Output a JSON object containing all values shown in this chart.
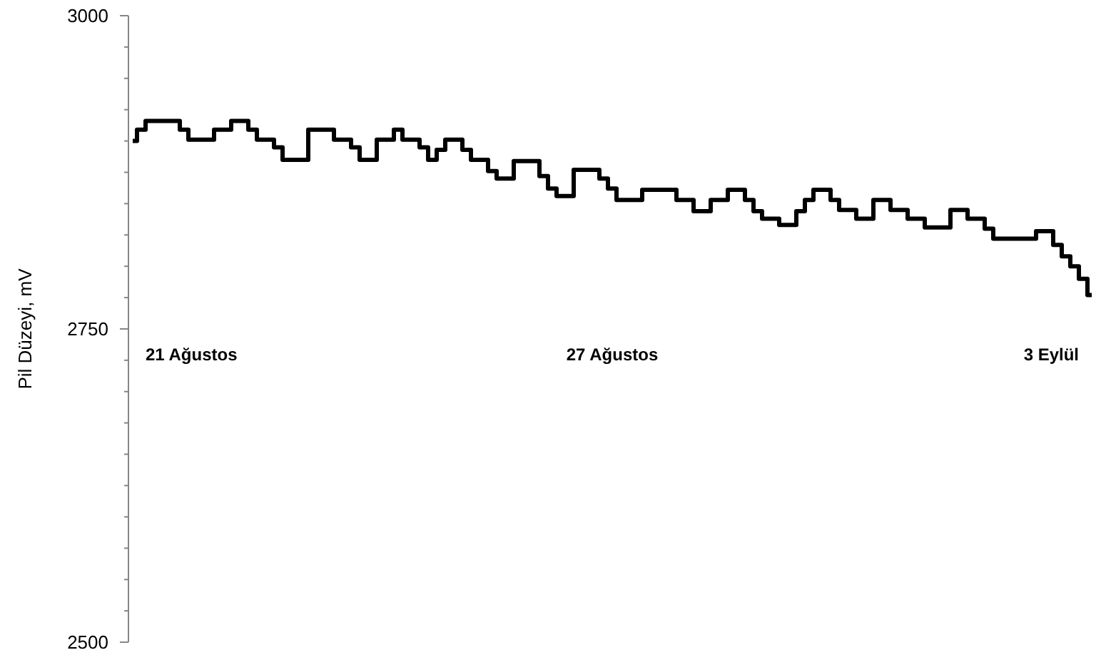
{
  "chart_data": {
    "type": "step",
    "ylabel": "Pil Düzeyi, mV",
    "ylim": [
      2500,
      3000
    ],
    "yticks": [
      2500,
      {
        "value": 2525,
        "label": null
      },
      {
        "value": 2550,
        "label": null
      },
      {
        "value": 2575,
        "label": null
      },
      {
        "value": 2600,
        "label": null
      },
      {
        "value": 2625,
        "label": null
      },
      {
        "value": 2650,
        "label": null
      },
      {
        "value": 2675,
        "label": null
      },
      {
        "value": 2700,
        "label": null
      },
      {
        "value": 2725,
        "label": null
      },
      2750,
      {
        "value": 2775,
        "label": null
      },
      {
        "value": 2800,
        "label": null
      },
      {
        "value": 2825,
        "label": null
      },
      {
        "value": 2850,
        "label": null
      },
      {
        "value": 2875,
        "label": null
      },
      {
        "value": 2900,
        "label": null
      },
      {
        "value": 2925,
        "label": null
      },
      {
        "value": 2950,
        "label": null
      },
      {
        "value": 2975,
        "label": null
      },
      3000
    ],
    "categories": [
      null,
      null,
      null,
      null,
      null,
      null,
      null,
      null,
      null,
      null,
      null,
      null,
      null,
      null,
      null,
      null,
      null,
      null,
      null,
      null,
      null,
      null,
      null,
      null,
      null,
      null,
      null,
      null,
      null,
      null,
      null,
      null,
      null,
      null,
      null,
      null,
      null,
      null,
      null,
      null,
      null,
      null,
      null,
      null,
      null,
      null,
      null,
      null,
      null,
      null,
      null,
      null,
      null,
      null,
      null,
      null,
      null,
      null,
      null,
      null,
      null,
      null,
      null,
      null,
      null,
      null,
      null,
      null,
      null,
      null,
      null,
      null,
      null,
      null,
      null,
      null,
      null,
      null,
      null,
      null,
      null,
      null,
      null,
      null,
      null,
      null,
      null,
      null,
      null,
      null,
      null,
      null,
      null,
      null,
      null,
      null,
      null,
      null,
      null,
      null,
      null,
      null,
      null,
      null,
      null,
      null,
      null,
      null,
      null,
      null,
      null,
      null,
      null
    ],
    "series": [
      {
        "color": "#000000",
        "values": [
          2900,
          2909,
          2916,
          2916,
          2916,
          2916,
          2909,
          2901,
          2901,
          2901,
          2909,
          2909,
          2916,
          2916,
          2909,
          2901,
          2901,
          2895,
          2885,
          2885,
          2885,
          2909,
          2909,
          2909,
          2901,
          2901,
          2895,
          2885,
          2885,
          2901,
          2901,
          2909,
          2901,
          2901,
          2895,
          2885,
          2893,
          2901,
          2901,
          2893,
          2885,
          2885,
          2876,
          2870,
          2870,
          2884,
          2884,
          2884,
          2872,
          2862,
          2856,
          2856,
          2877,
          2877,
          2877,
          2870,
          2862,
          2853,
          2853,
          2853,
          2861,
          2861,
          2861,
          2861,
          2853,
          2853,
          2844,
          2844,
          2853,
          2853,
          2861,
          2861,
          2853,
          2844,
          2838,
          2838,
          2833,
          2833,
          2844,
          2853,
          2861,
          2861,
          2853,
          2845,
          2845,
          2838,
          2838,
          2853,
          2853,
          2845,
          2845,
          2838,
          2838,
          2831,
          2831,
          2831,
          2845,
          2845,
          2838,
          2838,
          2830,
          2822,
          2822,
          2822,
          2822,
          2822,
          2828,
          2828,
          2817,
          2808,
          2800,
          2790,
          2777
        ]
      }
    ],
    "annotations": [
      "21 Ağustos",
      "27 Ağustos",
      "3 Eylül"
    ],
    "grid": false,
    "marker": "none",
    "line_style": "solid",
    "tick_labels": "y"
  }
}
